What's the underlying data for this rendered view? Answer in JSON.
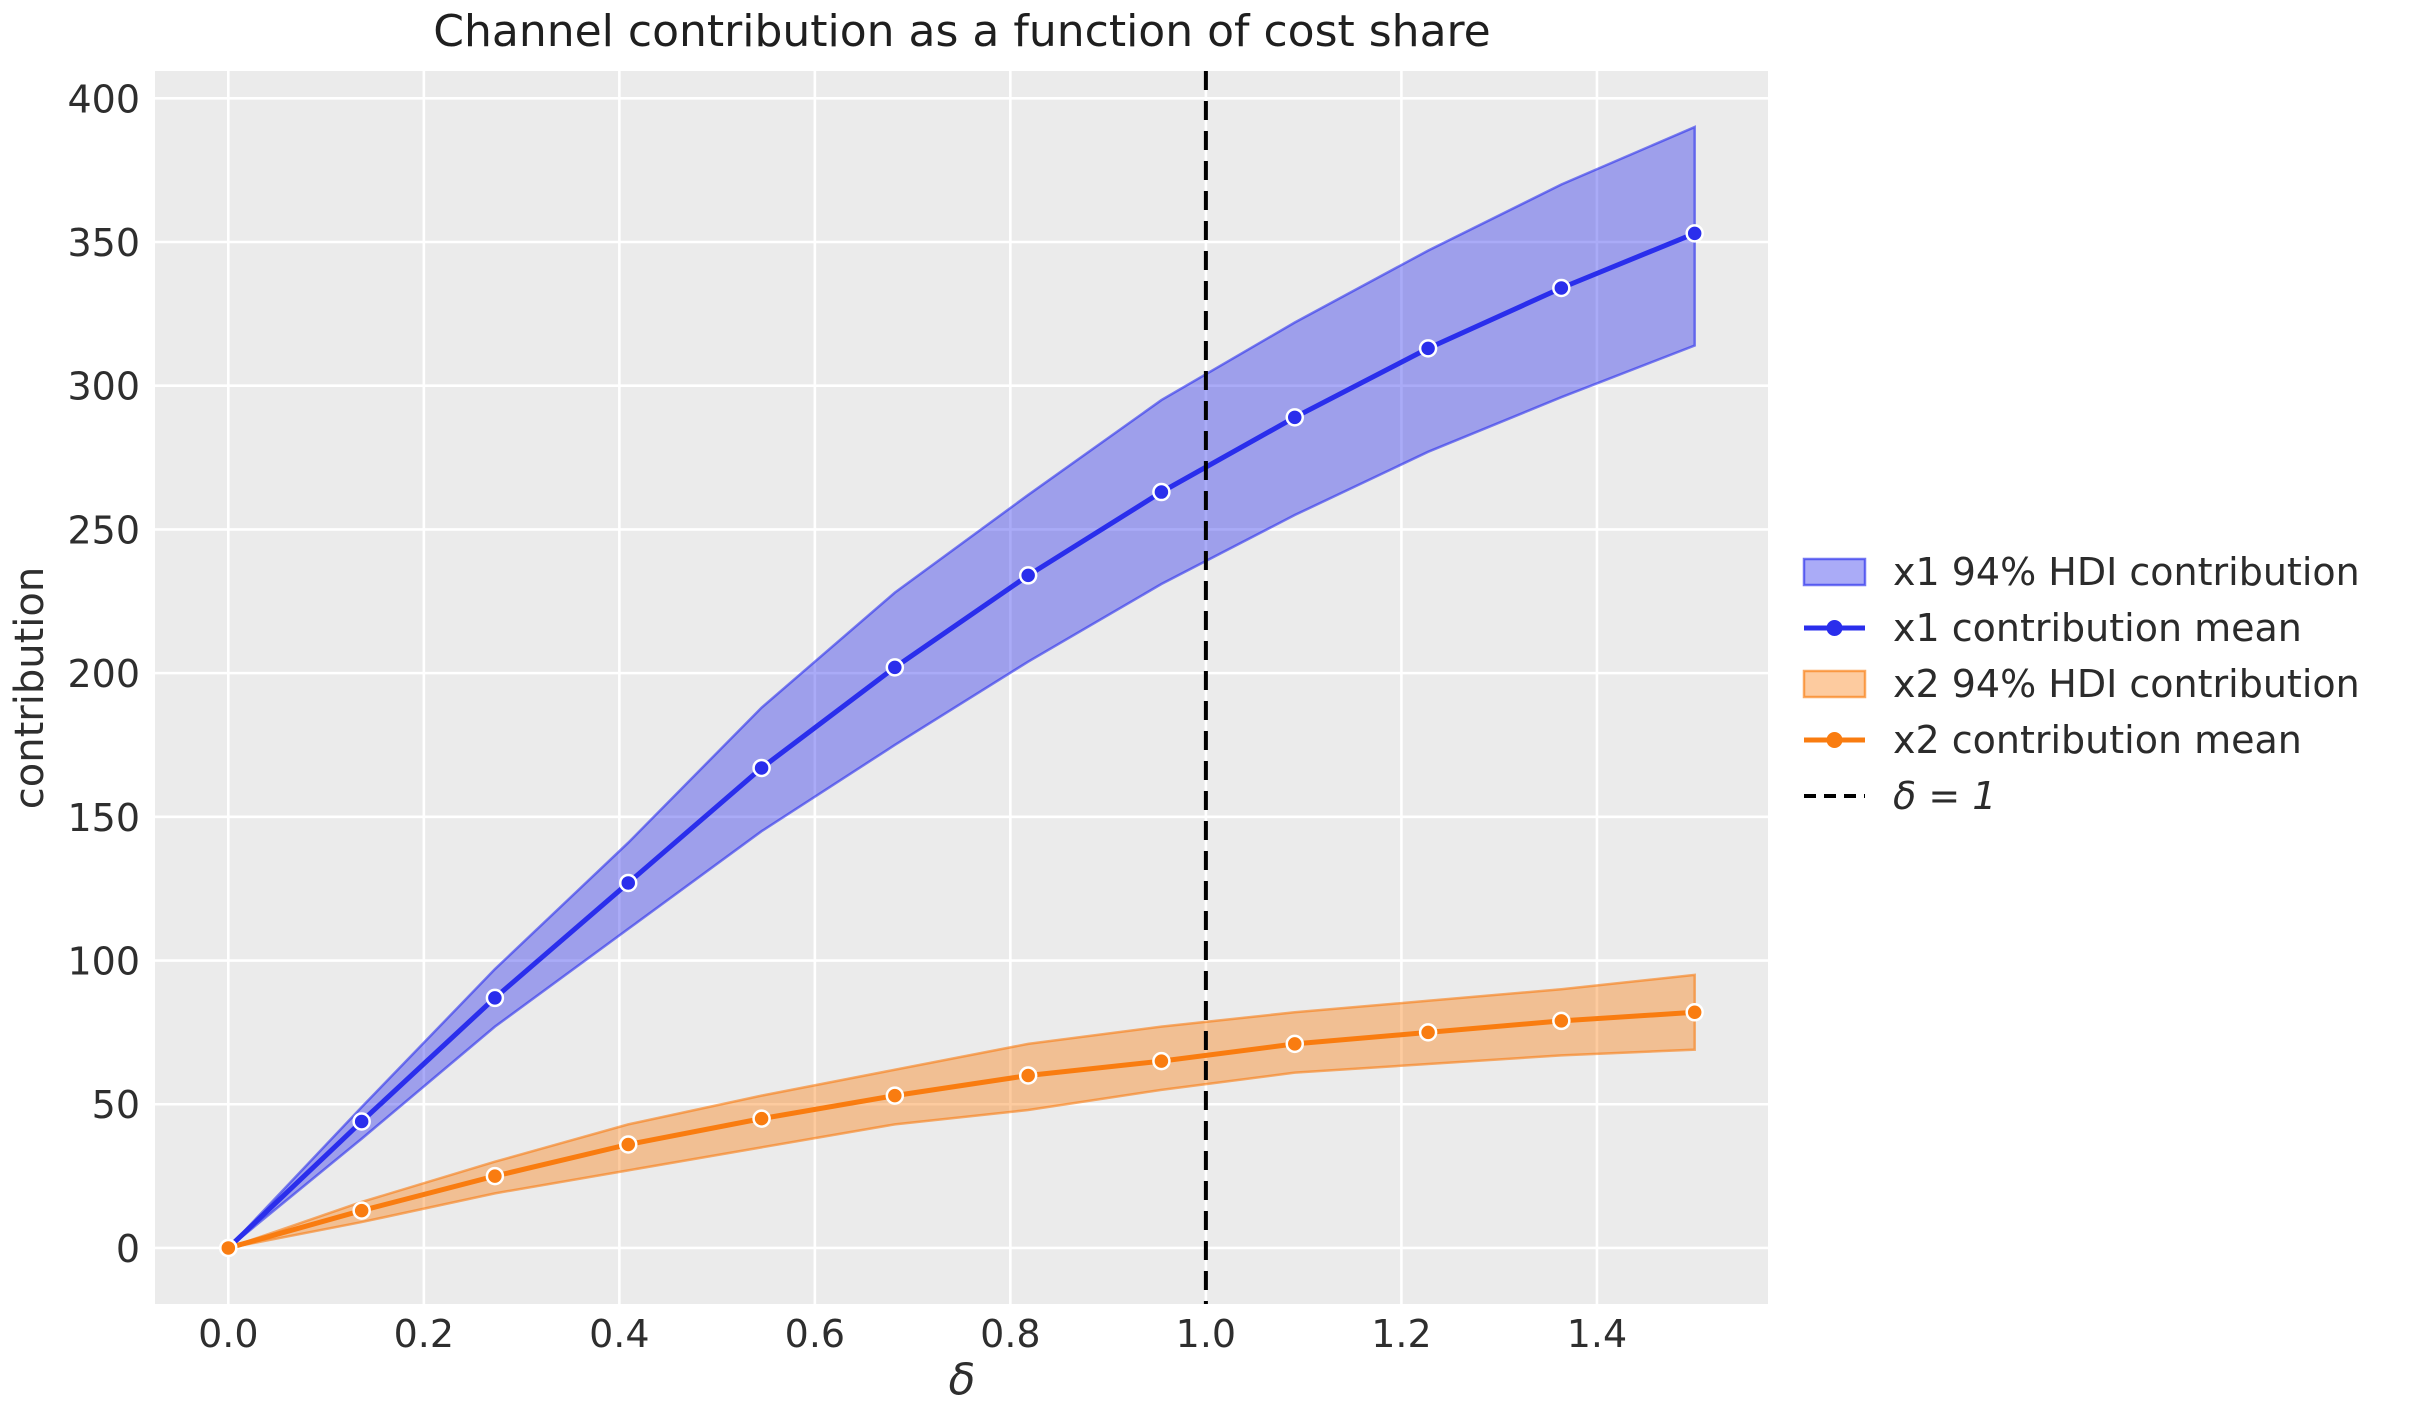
{
  "figure": {
    "background": "#ffffff",
    "plot_background": "#ebebeb",
    "grid_color": "#ffffff",
    "tick_color": "#2e2e2e",
    "title_color": "#1f1f1f"
  },
  "chart_data": {
    "type": "line",
    "title": "Channel contribution as a function of cost share",
    "xlabel": "δ",
    "ylabel": "contribution",
    "grid": true,
    "legend_position": "center right, outside axes",
    "xlim": [
      -0.075,
      1.575
    ],
    "ylim": [
      -19.5,
      409.5
    ],
    "xticks": [
      0.0,
      0.2,
      0.4,
      0.6,
      0.8,
      1.0,
      1.2,
      1.4
    ],
    "xtick_labels": [
      "0.0",
      "0.2",
      "0.4",
      "0.6",
      "0.8",
      "1.0",
      "1.2",
      "1.4"
    ],
    "yticks": [
      0,
      50,
      100,
      150,
      200,
      250,
      300,
      350,
      400
    ],
    "ytick_labels": [
      "0",
      "50",
      "100",
      "150",
      "200",
      "250",
      "300",
      "350",
      "400"
    ],
    "x": [
      0,
      0.1364,
      0.2727,
      0.4091,
      0.5455,
      0.6818,
      0.8182,
      0.9545,
      1.0909,
      1.2273,
      1.3636,
      1.5
    ],
    "series": [
      {
        "id": "x1_hdi",
        "label": "x1 94% HDI contribution",
        "type": "band",
        "color": "#2a2eec",
        "lower": [
          0,
          38,
          77,
          111,
          145,
          175,
          204,
          231,
          255,
          277,
          296,
          314
        ],
        "upper": [
          0,
          49,
          97,
          141,
          188,
          228,
          262,
          295,
          322,
          347,
          370,
          390
        ]
      },
      {
        "id": "x1_mean",
        "label": "x1 contribution mean",
        "type": "line",
        "marker": "circle",
        "color": "#2a2eec",
        "values": [
          0,
          44,
          87,
          127,
          167,
          202,
          234,
          263,
          289,
          313,
          334,
          353
        ]
      },
      {
        "id": "x2_hdi",
        "label": "x2 94% HDI contribution",
        "type": "band",
        "color": "#f97c10",
        "lower": [
          0,
          9,
          19,
          27,
          35,
          43,
          48,
          55,
          61,
          64,
          67,
          69
        ],
        "upper": [
          0,
          16,
          30,
          43,
          53,
          62,
          71,
          77,
          82,
          86,
          90,
          95
        ]
      },
      {
        "id": "x2_mean",
        "label": "x2 contribution mean",
        "type": "line",
        "marker": "circle",
        "color": "#f97c10",
        "values": [
          0,
          13,
          25,
          36,
          45,
          53,
          60,
          65,
          71,
          75,
          79,
          82
        ]
      }
    ],
    "vline": {
      "x": 1.0,
      "label": "δ = 1",
      "color": "#000000",
      "style": "dashed"
    },
    "legend": [
      {
        "label": "x1 94% HDI contribution",
        "type": "band",
        "color": "#2a2eec"
      },
      {
        "label": "x1 contribution mean",
        "type": "line-marker",
        "color": "#2a2eec"
      },
      {
        "label": "x2 94% HDI contribution",
        "type": "band",
        "color": "#f97c10"
      },
      {
        "label": "x2 contribution mean",
        "type": "line-marker",
        "color": "#f97c10"
      },
      {
        "label": "δ = 1",
        "type": "dashed-line",
        "color": "#000000"
      }
    ]
  }
}
